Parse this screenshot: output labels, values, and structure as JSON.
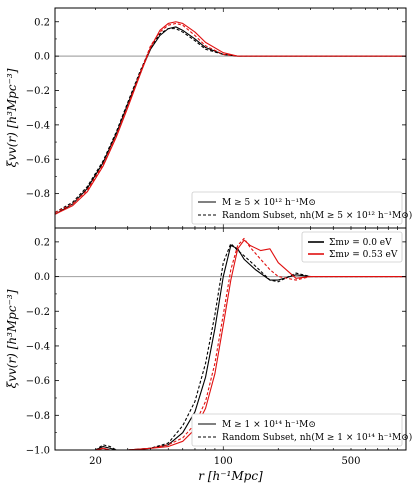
{
  "chart_data": [
    {
      "type": "line",
      "panel": "top",
      "ylabel": "ξvv(r) [h³Mpc⁻³]",
      "ylim": [
        -1.0,
        0.28
      ],
      "xlim": [
        12,
        1000
      ],
      "xscale": "log",
      "yticks": [
        "0.2",
        "0.0",
        "−0.2",
        "−0.4",
        "−0.6",
        "−0.8"
      ],
      "ytick_values": [
        0.2,
        0.0,
        -0.2,
        -0.4,
        -0.6,
        -0.8
      ],
      "hline": 0.0,
      "legend_position": "lower right",
      "legend": [
        "M ≥ 5 × 10¹² h⁻¹M⊙",
        "Random Subset, nh(M ≥ 5 × 10¹² h⁻¹M⊙)"
      ],
      "series": [
        {
          "color": "#000000",
          "dash": "solid",
          "x": [
            12,
            15,
            18,
            22,
            26,
            30,
            35,
            40,
            45,
            50,
            55,
            60,
            70,
            80,
            100,
            120,
            150,
            200,
            300,
            500,
            1000
          ],
          "y": [
            -0.92,
            -0.86,
            -0.77,
            -0.62,
            -0.45,
            -0.28,
            -0.1,
            0.04,
            0.12,
            0.16,
            0.17,
            0.15,
            0.1,
            0.05,
            0.01,
            0.0,
            0.0,
            0.0,
            0.0,
            0.0,
            0.0
          ]
        },
        {
          "color": "#000000",
          "dash": "dashed",
          "x": [
            12,
            15,
            18,
            22,
            26,
            30,
            35,
            40,
            45,
            50,
            55,
            60,
            70,
            80,
            100,
            120,
            150,
            200,
            300,
            500,
            1000
          ],
          "y": [
            -0.91,
            -0.85,
            -0.76,
            -0.61,
            -0.44,
            -0.27,
            -0.09,
            0.05,
            0.13,
            0.16,
            0.16,
            0.14,
            0.09,
            0.04,
            0.01,
            0.0,
            0.0,
            0.0,
            0.0,
            0.0,
            0.0
          ]
        },
        {
          "color": "#e01010",
          "dash": "solid",
          "x": [
            12,
            15,
            18,
            22,
            26,
            30,
            35,
            40,
            45,
            50,
            55,
            60,
            70,
            80,
            100,
            120,
            150,
            200,
            300,
            500,
            1000
          ],
          "y": [
            -0.92,
            -0.87,
            -0.79,
            -0.64,
            -0.47,
            -0.3,
            -0.11,
            0.05,
            0.15,
            0.19,
            0.2,
            0.19,
            0.14,
            0.08,
            0.02,
            0.0,
            0.0,
            0.0,
            0.0,
            0.0,
            0.0
          ]
        },
        {
          "color": "#e01010",
          "dash": "dashed",
          "x": [
            12,
            15,
            18,
            22,
            26,
            30,
            35,
            40,
            45,
            50,
            55,
            60,
            70,
            80,
            100,
            120,
            150,
            200,
            300,
            500,
            1000
          ],
          "y": [
            -0.91,
            -0.86,
            -0.78,
            -0.63,
            -0.46,
            -0.29,
            -0.1,
            0.06,
            0.14,
            0.18,
            0.19,
            0.18,
            0.12,
            0.06,
            0.01,
            0.0,
            0.0,
            0.0,
            0.0,
            0.0,
            0.0
          ]
        }
      ]
    },
    {
      "type": "line",
      "panel": "bottom",
      "xlabel": "r [h⁻¹Mpc]",
      "ylabel": "ξvv(r) [h³Mpc⁻³]",
      "ylim": [
        -1.0,
        0.28
      ],
      "xlim": [
        12,
        1000
      ],
      "xscale": "log",
      "xticks": [
        "20",
        "100",
        "500"
      ],
      "xtick_values": [
        20,
        100,
        500
      ],
      "yticks": [
        "0.2",
        "0.0",
        "−0.2",
        "−0.4",
        "−0.6",
        "−0.8",
        "−1.0"
      ],
      "ytick_values": [
        0.2,
        0.0,
        -0.2,
        -0.4,
        -0.6,
        -0.8,
        -1.0
      ],
      "hline": 0.0,
      "legend_position": "lower right",
      "legend": [
        "M ≥ 1 × 10¹⁴ h⁻¹M⊙",
        "Random Subset, nh(M ≥ 1 × 10¹⁴ h⁻¹M⊙)"
      ],
      "color_legend_position": "upper right",
      "color_legend": [
        {
          "label": "Σmν = 0.0 eV",
          "color": "#000000"
        },
        {
          "label": "Σmν = 0.53 eV",
          "color": "#e01010"
        }
      ],
      "series": [
        {
          "color": "#000000",
          "dash": "solid",
          "x": [
            12,
            20,
            22,
            24,
            26,
            30,
            40,
            50,
            60,
            70,
            80,
            90,
            100,
            110,
            120,
            130,
            150,
            180,
            200,
            250,
            300,
            400,
            500,
            700,
            1000
          ],
          "y": [
            -1.0,
            -1.0,
            -0.98,
            -0.99,
            -1.0,
            -1.0,
            -0.99,
            -0.97,
            -0.9,
            -0.78,
            -0.58,
            -0.3,
            0.0,
            0.18,
            0.16,
            0.1,
            0.04,
            -0.02,
            -0.02,
            0.01,
            0.0,
            0.0,
            0.0,
            0.0,
            0.0
          ]
        },
        {
          "color": "#000000",
          "dash": "dashed",
          "x": [
            12,
            20,
            22,
            24,
            26,
            30,
            40,
            50,
            60,
            70,
            80,
            90,
            100,
            110,
            120,
            130,
            150,
            180,
            200,
            250,
            300,
            400,
            500,
            700,
            1000
          ],
          "y": [
            -1.0,
            -1.0,
            -0.97,
            -0.98,
            -1.0,
            -1.0,
            -0.99,
            -0.96,
            -0.86,
            -0.72,
            -0.5,
            -0.22,
            0.08,
            0.19,
            0.15,
            0.12,
            0.06,
            -0.02,
            -0.03,
            0.02,
            0.0,
            0.0,
            0.0,
            0.0,
            0.0
          ]
        },
        {
          "color": "#e01010",
          "dash": "solid",
          "x": [
            12,
            20,
            22,
            24,
            26,
            30,
            40,
            50,
            60,
            70,
            80,
            90,
            100,
            110,
            120,
            130,
            140,
            160,
            180,
            200,
            250,
            300,
            400,
            500,
            700,
            1000
          ],
          "y": [
            -1.0,
            -1.0,
            -0.99,
            -1.0,
            -1.0,
            -1.0,
            -0.99,
            -0.98,
            -0.95,
            -0.88,
            -0.76,
            -0.56,
            -0.28,
            -0.02,
            0.16,
            0.21,
            0.18,
            0.15,
            0.16,
            0.08,
            -0.01,
            0.0,
            0.0,
            0.0,
            0.0,
            0.0
          ]
        },
        {
          "color": "#e01010",
          "dash": "dashed",
          "x": [
            12,
            20,
            22,
            24,
            26,
            30,
            40,
            50,
            60,
            70,
            80,
            90,
            100,
            110,
            120,
            130,
            140,
            160,
            180,
            200,
            250,
            300,
            400,
            500,
            700,
            1000
          ],
          "y": [
            -1.0,
            -1.0,
            -0.99,
            -1.0,
            -1.0,
            -1.0,
            -0.99,
            -0.97,
            -0.93,
            -0.85,
            -0.72,
            -0.5,
            -0.22,
            0.04,
            0.18,
            0.22,
            0.17,
            0.1,
            0.04,
            0.0,
            -0.02,
            0.0,
            0.0,
            0.0,
            0.0,
            0.0
          ]
        }
      ]
    }
  ]
}
